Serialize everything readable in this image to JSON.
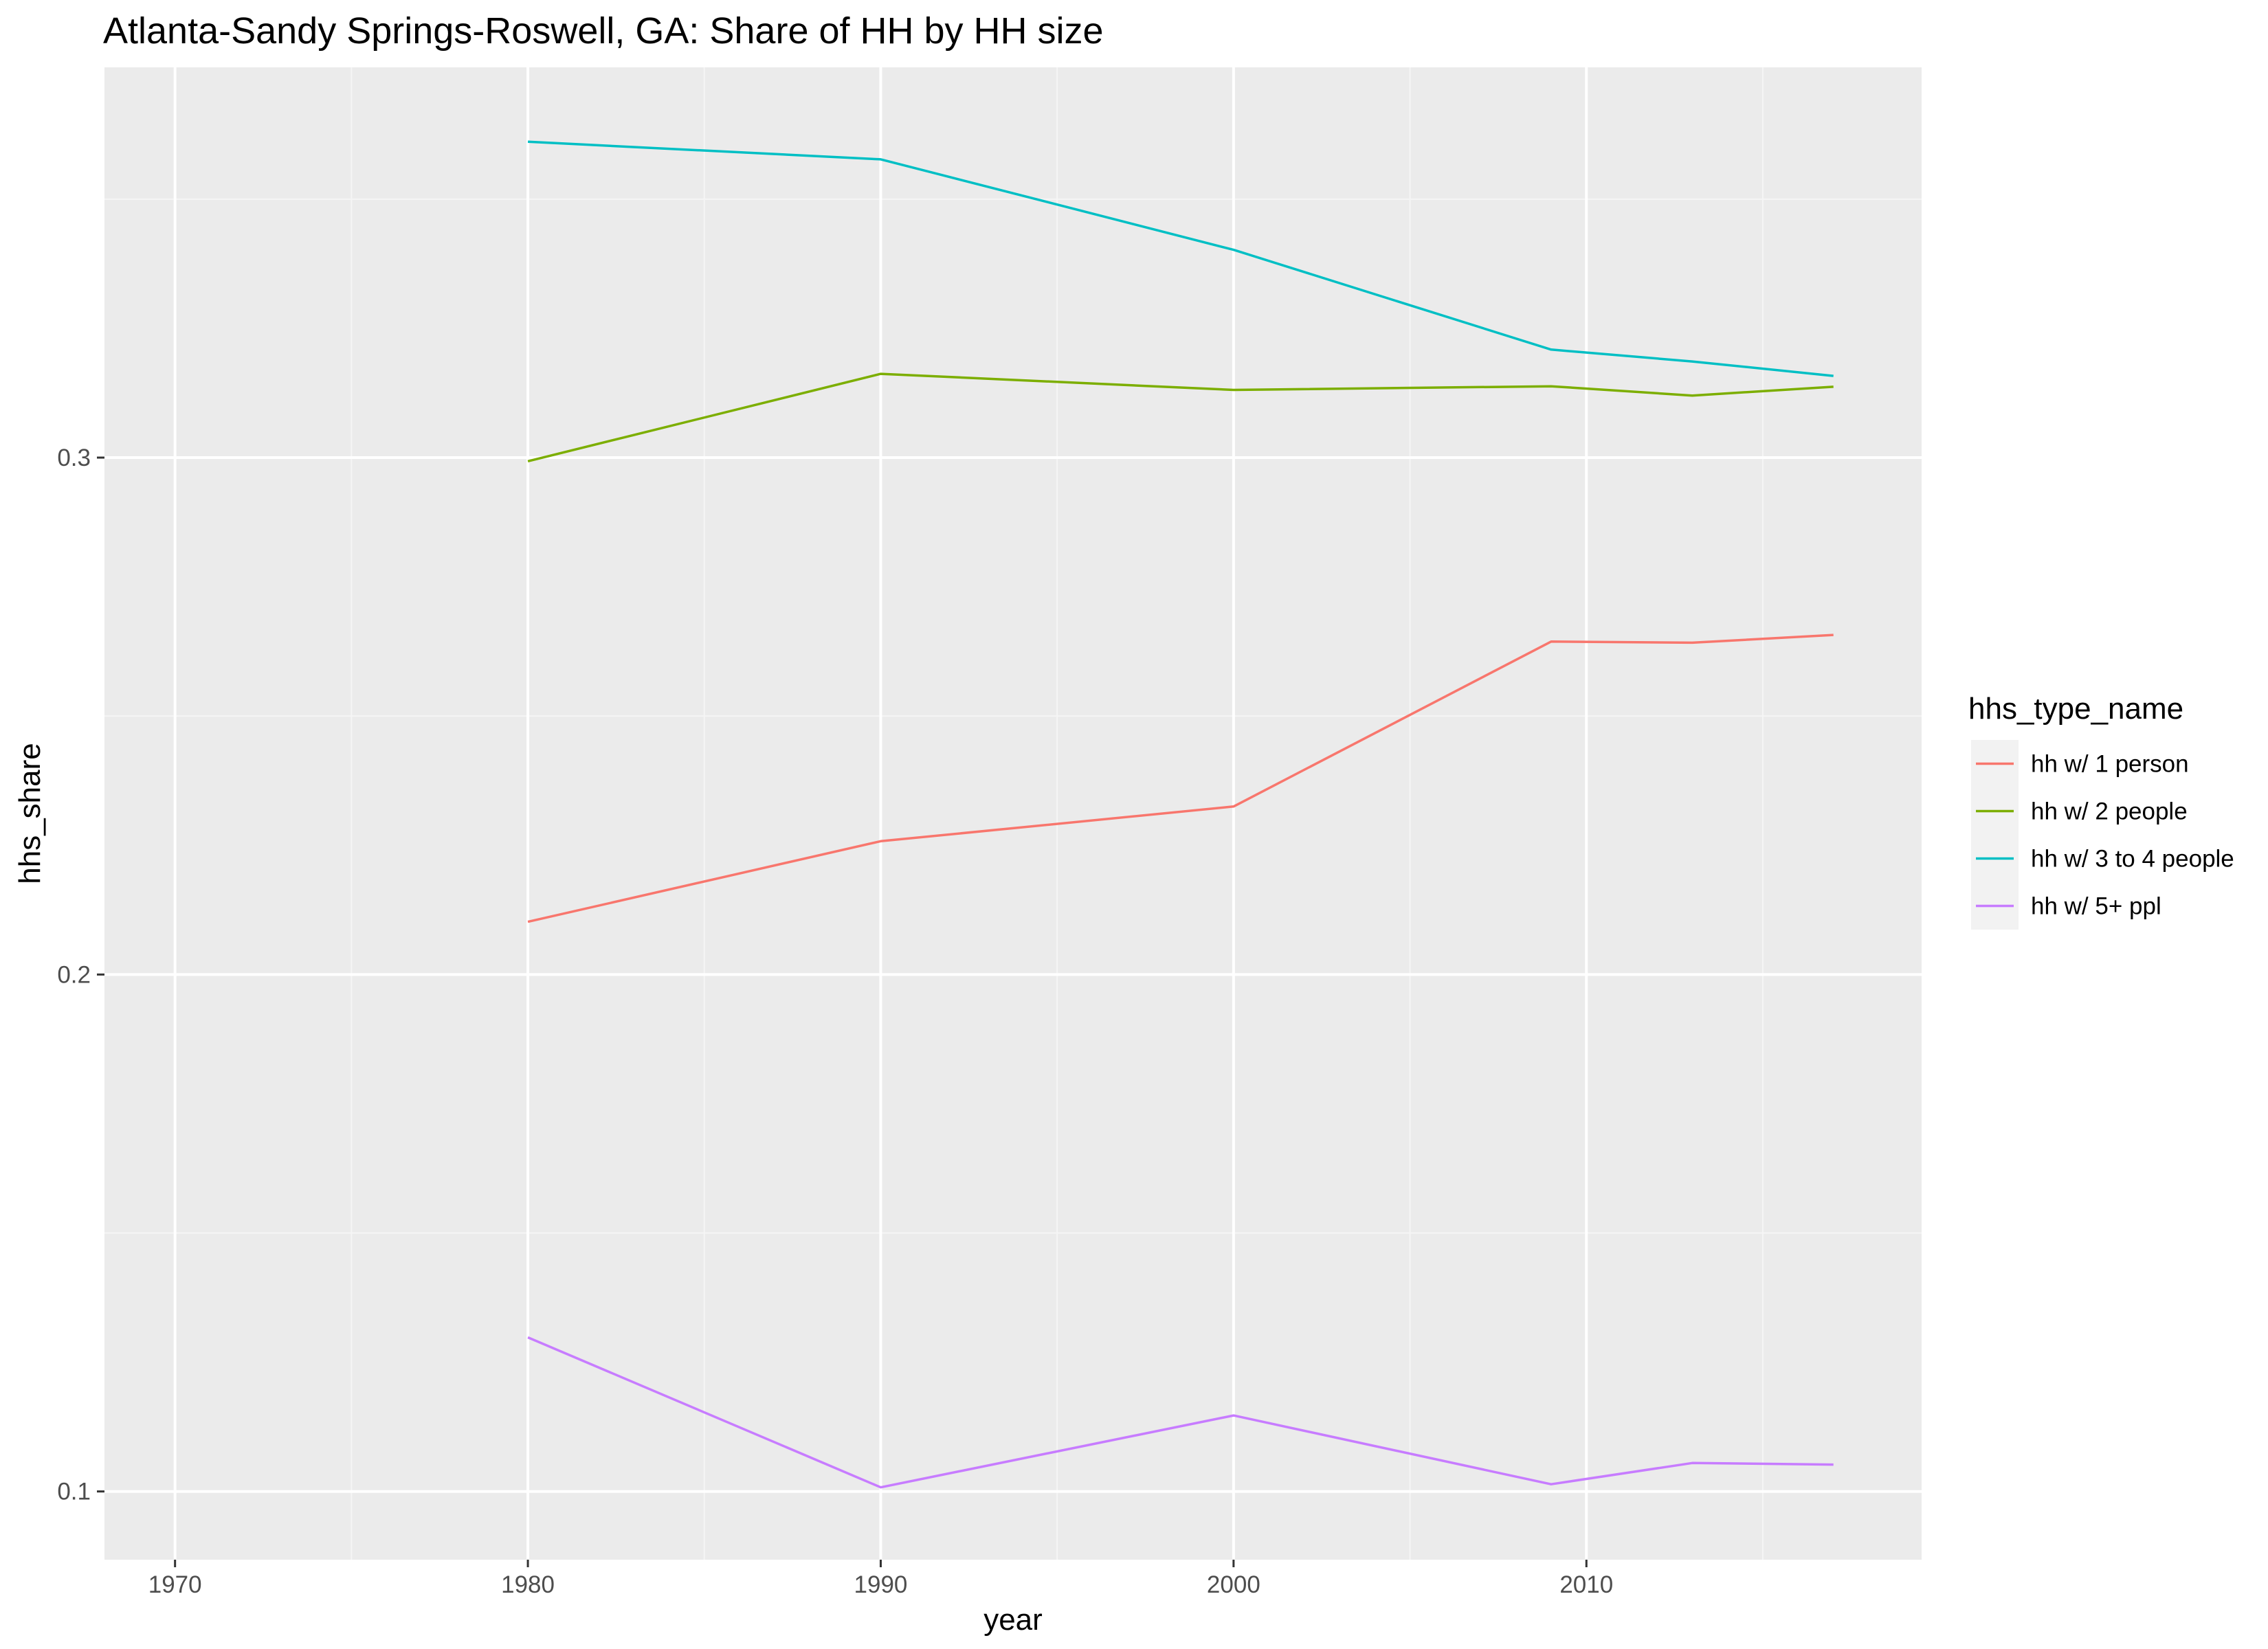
{
  "chart_data": {
    "type": "line",
    "title": "Atlanta-Sandy Springs-Roswell, GA: Share of HH by HH size",
    "xlabel": "year",
    "ylabel": "hhs_share",
    "xlim": [
      1968,
      2019.5
    ],
    "ylim": [
      0.0868,
      0.3755
    ],
    "x_ticks": [
      1970,
      1980,
      1990,
      2000,
      2010
    ],
    "x_tick_labels": [
      "1970",
      "1980",
      "1990",
      "2000",
      "2010"
    ],
    "y_ticks": [
      0.1,
      0.2,
      0.3
    ],
    "y_tick_labels": [
      "0.1",
      "0.2",
      "0.3"
    ],
    "grid": true,
    "legend_position": "right",
    "legend_title": "hhs_type_name",
    "series": [
      {
        "name": "hh w/ 1 person",
        "color": "#F8766D",
        "x": [
          1980,
          1990,
          2000,
          2009,
          2013,
          2017
        ],
        "y": [
          0.2102,
          0.2258,
          0.2325,
          0.2644,
          0.2642,
          0.2657
        ]
      },
      {
        "name": "hh w/ 2 people",
        "color": "#7CAE00",
        "x": [
          1980,
          1990,
          2000,
          2009,
          2013,
          2017
        ],
        "y": [
          0.2993,
          0.3162,
          0.3131,
          0.3138,
          0.312,
          0.3137
        ]
      },
      {
        "name": "hh w/ 3 to 4 people",
        "color": "#00BFC4",
        "x": [
          1980,
          1990,
          2000,
          2009,
          2013,
          2017
        ],
        "y": [
          0.3611,
          0.3577,
          0.3402,
          0.3209,
          0.3186,
          0.3158
        ]
      },
      {
        "name": "hh w/ 5+ ppl",
        "color": "#C77CFF",
        "x": [
          1980,
          1990,
          2000,
          2009,
          2013,
          2017
        ],
        "y": [
          0.1298,
          0.1008,
          0.1147,
          0.1014,
          0.1055,
          0.1052
        ]
      }
    ]
  }
}
